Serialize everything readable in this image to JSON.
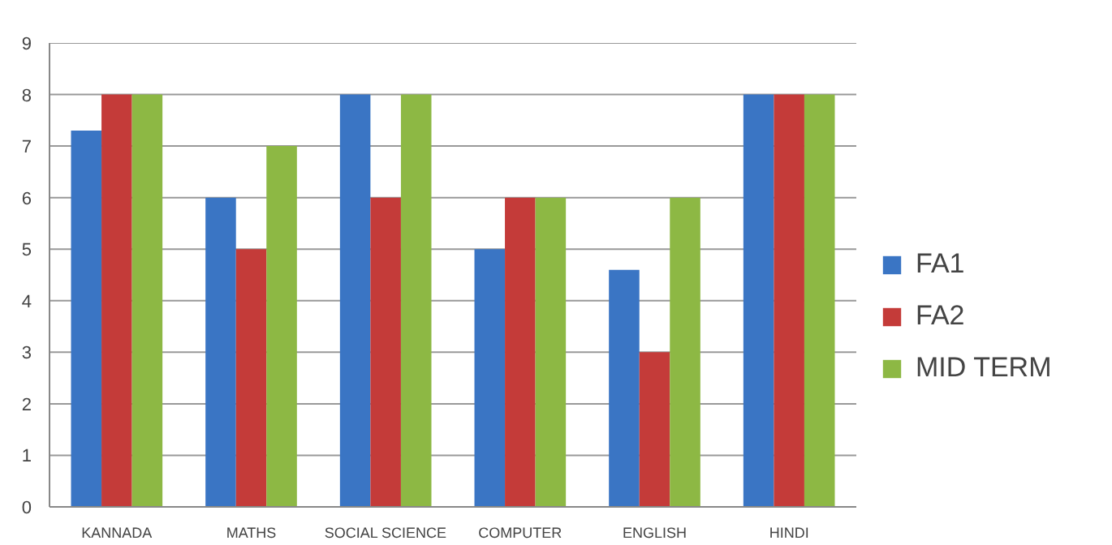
{
  "chart_data": {
    "type": "bar",
    "categories": [
      "KANNADA",
      "MATHS",
      "SOCIAL SCIENCE",
      "COMPUTER",
      "ENGLISH",
      "HINDI"
    ],
    "series": [
      {
        "name": "FA1",
        "color": "#3a75c4",
        "values": [
          7.3,
          6,
          8,
          5,
          4.6,
          8
        ]
      },
      {
        "name": "FA2",
        "color": "#c43b39",
        "values": [
          8,
          5,
          6,
          6,
          3,
          8
        ]
      },
      {
        "name": "MID TERM",
        "color": "#8db844",
        "values": [
          8,
          7,
          8,
          6,
          6,
          8
        ]
      }
    ],
    "ylim": [
      0,
      9
    ],
    "yticks": [
      0,
      1,
      2,
      3,
      4,
      5,
      6,
      7,
      8,
      9
    ],
    "grid": "y",
    "legend": "right"
  }
}
